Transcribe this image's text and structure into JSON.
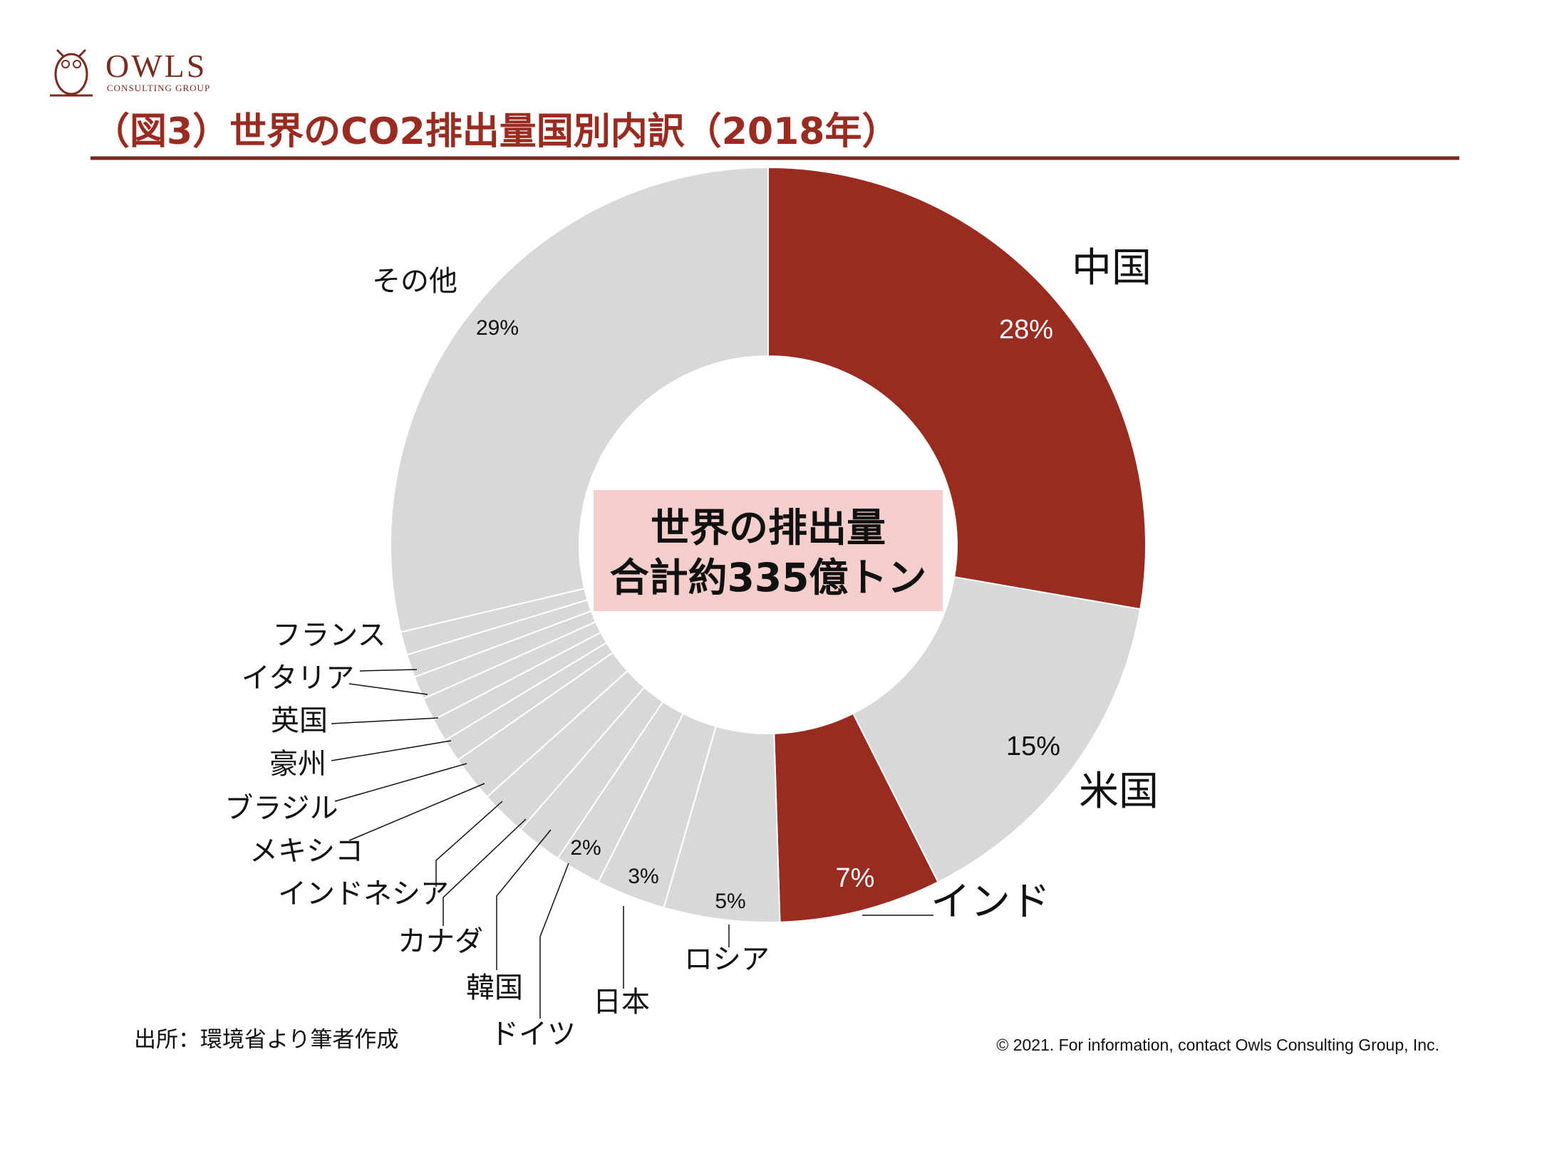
{
  "brand": {
    "name": "OWLS",
    "tagline": "CONSULTING GROUP",
    "color": "#7a2a1f"
  },
  "title": "（図3）世界のCO2排出量国別内訳（2018年）",
  "colors": {
    "accent": "#9a2b20",
    "neutral": "#d7d8da",
    "center_box": "#f4ceca",
    "rule": "#7a2a1f"
  },
  "center_label": {
    "line1": "世界の排出量",
    "line2": "合計約335億トン"
  },
  "chart_data": {
    "type": "pie",
    "style": "donut",
    "start": "12 o'clock",
    "direction": "clockwise",
    "unit": "%",
    "slices": [
      {
        "label": "中国",
        "value": 28,
        "value_label": "28%",
        "highlight": true
      },
      {
        "label": "米国",
        "value": 15,
        "value_label": "15%",
        "highlight": false
      },
      {
        "label": "インド",
        "value": 7,
        "value_label": "7%",
        "highlight": true
      },
      {
        "label": "ロシア",
        "value": 5,
        "value_label": "5%",
        "highlight": false
      },
      {
        "label": "日本",
        "value": 3,
        "value_label": "3%",
        "highlight": false
      },
      {
        "label": "ドイツ",
        "value": 2,
        "value_label": "2%",
        "highlight": false
      },
      {
        "label": "韓国",
        "value": 2,
        "value_label": "",
        "highlight": false
      },
      {
        "label": "カナダ",
        "value": 2,
        "value_label": "",
        "highlight": false
      },
      {
        "label": "インドネシア",
        "value": 2,
        "value_label": "",
        "highlight": false
      },
      {
        "label": "メキシコ",
        "value": 1,
        "value_label": "",
        "highlight": false
      },
      {
        "label": "ブラジル",
        "value": 1,
        "value_label": "",
        "highlight": false
      },
      {
        "label": "豪州",
        "value": 1,
        "value_label": "",
        "highlight": false
      },
      {
        "label": "英国",
        "value": 1,
        "value_label": "",
        "highlight": false
      },
      {
        "label": "イタリア",
        "value": 1,
        "value_label": "",
        "highlight": false
      },
      {
        "label": "フランス",
        "value": 1,
        "value_label": "",
        "highlight": false
      },
      {
        "label": "その他",
        "value": 29,
        "value_label": "29%",
        "highlight": false
      }
    ]
  },
  "source": "出所：環境省より筆者作成",
  "copyright": "© 2021. For information, contact Owls Consulting Group, Inc."
}
